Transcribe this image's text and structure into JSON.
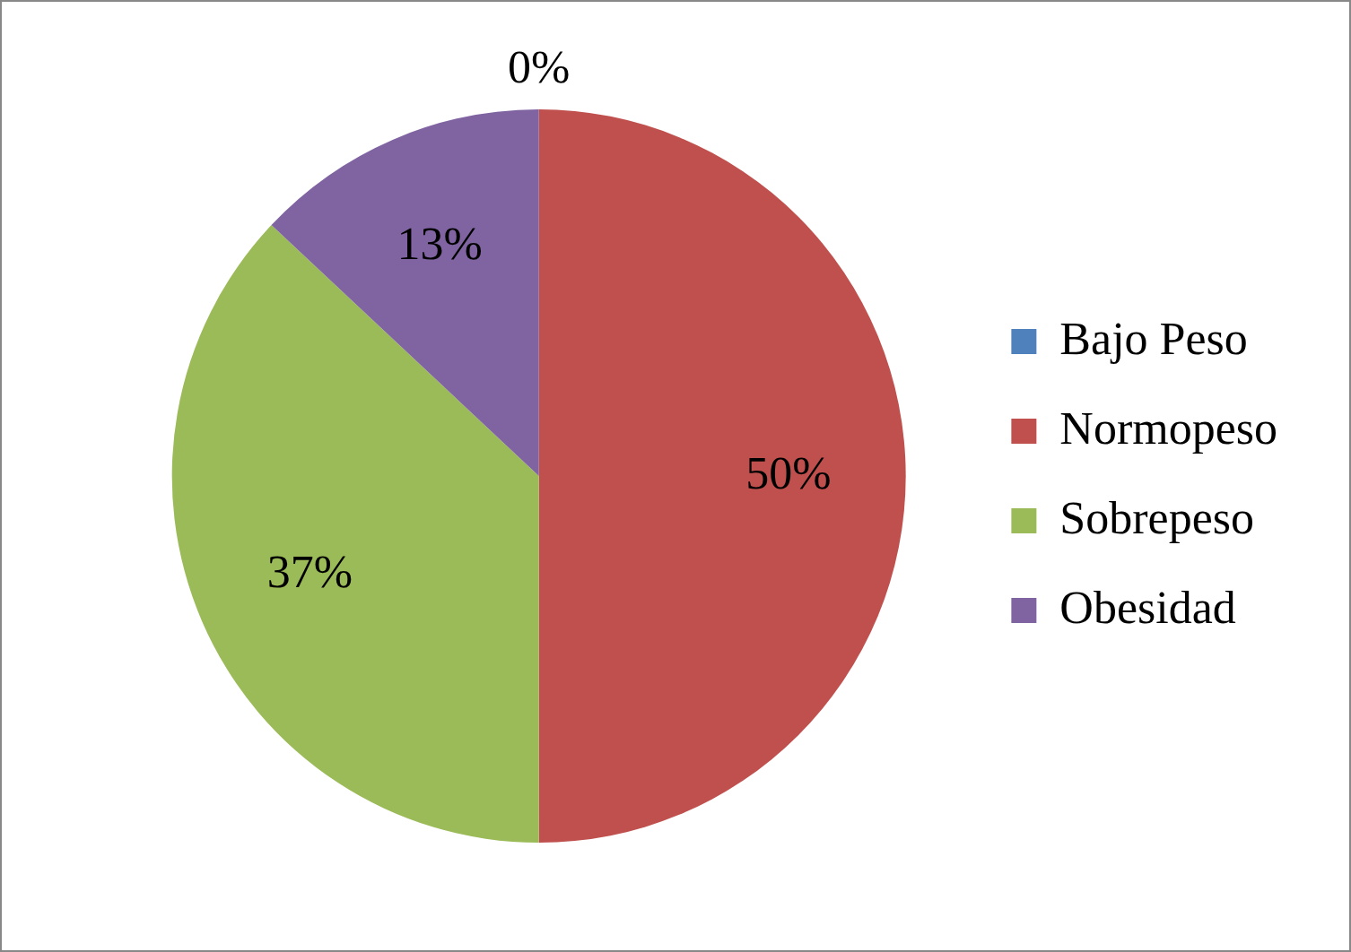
{
  "chart_data": {
    "type": "pie",
    "categories": [
      "Bajo Peso",
      "Normopeso",
      "Sobrepeso",
      "Obesidad"
    ],
    "values": [
      0,
      50,
      37,
      13
    ],
    "colors": [
      "#4f81bd",
      "#c0504d",
      "#9bbb59",
      "#8064a2"
    ],
    "value_labels": [
      "0%",
      "50%",
      "37%",
      "13%"
    ],
    "legend": "right"
  }
}
